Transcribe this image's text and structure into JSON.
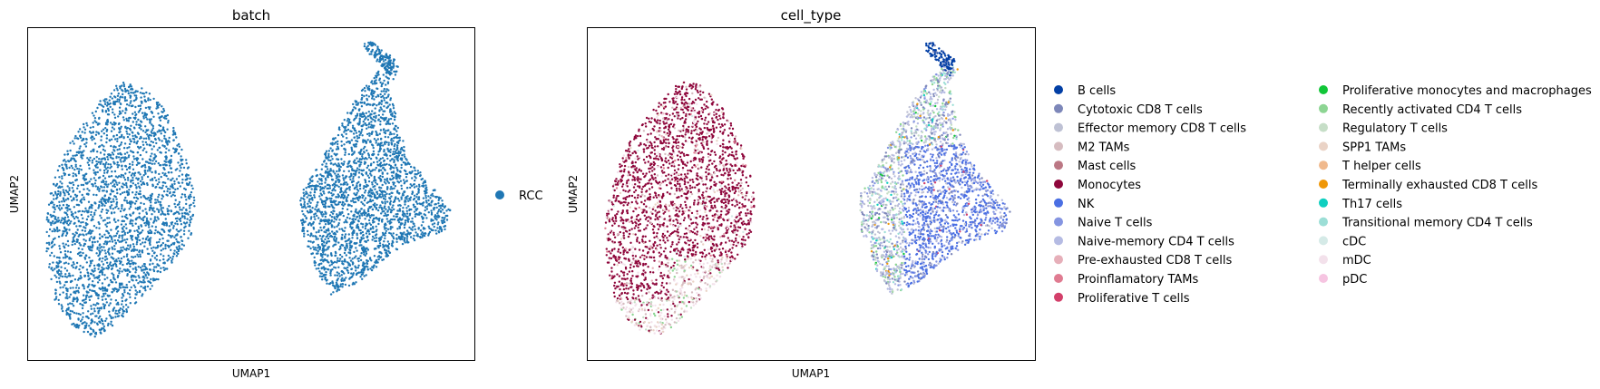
{
  "chart_data": [
    {
      "type": "scatter",
      "title": "batch",
      "xlabel": "UMAP1",
      "ylabel": "UMAP2",
      "xticks": false,
      "yticks": false,
      "grid": false,
      "legend_placement": "right",
      "legend": [
        {
          "name": "RCC",
          "color": "#1f77b4"
        }
      ],
      "clusters": [
        {
          "name": "left blob",
          "category": "RCC",
          "approx_points": 2600
        },
        {
          "name": "right blob",
          "category": "RCC",
          "approx_points": 2600
        }
      ]
    },
    {
      "type": "scatter",
      "title": "cell_type",
      "xlabel": "UMAP1",
      "ylabel": "UMAP2",
      "xticks": false,
      "yticks": false,
      "grid": false,
      "legend_placement": "right",
      "legend_columns": 2,
      "legend": [
        {
          "name": "B cells",
          "color": "#023fa5"
        },
        {
          "name": "Cytotoxic CD8 T cells",
          "color": "#7d87b9"
        },
        {
          "name": "Effector memory CD8 T cells",
          "color": "#bec1d4"
        },
        {
          "name": "M2 TAMs",
          "color": "#d6bcc0"
        },
        {
          "name": "Mast cells",
          "color": "#bb7784"
        },
        {
          "name": "Monocytes",
          "color": "#8e063b"
        },
        {
          "name": "NK",
          "color": "#4a6fe3"
        },
        {
          "name": "Naive T cells",
          "color": "#8595e1"
        },
        {
          "name": "Naive-memory CD4 T cells",
          "color": "#b5bbe3"
        },
        {
          "name": "Pre-exhausted CD8 T cells",
          "color": "#e6afb9"
        },
        {
          "name": "Proinflamatory TAMs",
          "color": "#e07b91"
        },
        {
          "name": "Proliferative T cells",
          "color": "#d33f6a"
        },
        {
          "name": "Proliferative monocytes and macrophages",
          "color": "#11c638"
        },
        {
          "name": "Recently activated CD4 T cells",
          "color": "#8dd593"
        },
        {
          "name": "Regulatory T cells",
          "color": "#c6dec7"
        },
        {
          "name": "SPP1 TAMs",
          "color": "#ead3c6"
        },
        {
          "name": "T helper cells",
          "color": "#f0b98d"
        },
        {
          "name": "Terminally exhausted CD8 T cells",
          "color": "#ef9708"
        },
        {
          "name": "Th17 cells",
          "color": "#0fcfc0"
        },
        {
          "name": "Transitional memory CD4 T cells",
          "color": "#9cded6"
        },
        {
          "name": "cDC",
          "color": "#d5eae7"
        },
        {
          "name": "mDC",
          "color": "#f3e1eb"
        },
        {
          "name": "pDC",
          "color": "#f6c4e1"
        }
      ],
      "clusters": [
        {
          "name": "left blob",
          "dominant_category": "Monocytes",
          "approx_points": 2600
        },
        {
          "name": "right blob",
          "dominant_category": "NK",
          "approx_points": 2600
        }
      ]
    }
  ]
}
